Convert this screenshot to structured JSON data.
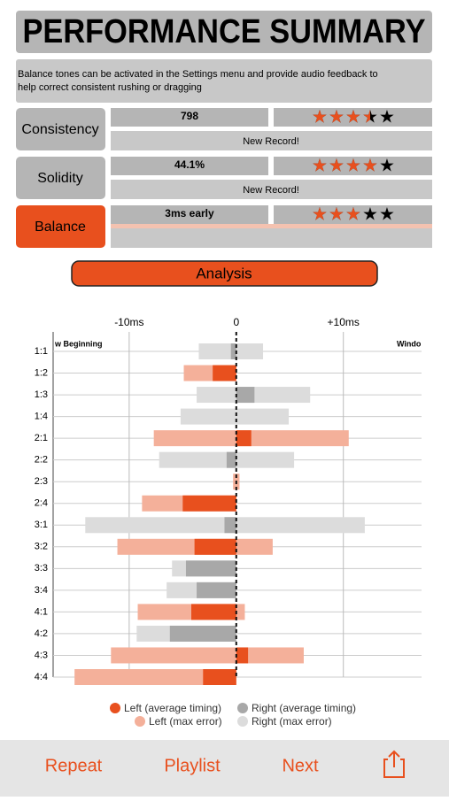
{
  "header": {
    "title": "PERFORMANCE SUMMARY",
    "description_lines": [
      "Balance tones can be activated in the Settings menu and provide audio feedback to",
      "help correct consistent rushing or dragging"
    ]
  },
  "metrics": [
    {
      "label": "Consistency",
      "value": "798",
      "note": "New Record!",
      "stars": 3.5
    },
    {
      "label": "Solidity",
      "value": "44.1%",
      "note": "New Record!",
      "stars": 4
    },
    {
      "label": "Balance",
      "value": "3ms early",
      "stars": 3
    }
  ],
  "button": "Analysis",
  "chart_data": {
    "type": "diverging-bar",
    "annotations": [
      "w Beginning",
      "Windo"
    ],
    "categories": [
      "1:1",
      "1:2",
      "1:3",
      "1:4",
      "2:1",
      "2:2",
      "2:3",
      "2:4",
      "3:1",
      "3:2",
      "3:3",
      "3:4",
      "4:1",
      "4:2",
      "4:3",
      "4:4"
    ],
    "series": [
      {
        "name": "Left (max error)",
        "color": "#f4b09a",
        "values": [
          -3.5,
          -4.9,
          -3.7,
          -5.2,
          -7.7,
          -7.2,
          -0.3,
          -8.8,
          -14.1,
          -11.1,
          -6.0,
          -6.5,
          -9.2,
          -9.3,
          -11.7,
          -15.1
        ],
        "point_colors": [
          "#dcdcdc",
          "#f4b09a",
          "#dcdcdc",
          "#dcdcdc",
          "#f4b09a",
          "#dcdcdc",
          "#f4b09a",
          "#f4b09a",
          "#dcdcdc",
          "#f4b09a",
          "#dcdcdc",
          "#dcdcdc",
          "#f4b09a",
          "#dcdcdc",
          "#f4b09a",
          "#f4b09a"
        ]
      },
      {
        "name": "Right (max error)",
        "color": "#dcdcdc",
        "values": [
          2.5,
          0,
          6.9,
          4.9,
          10.5,
          5.4,
          0.3,
          0,
          12.0,
          3.4,
          0,
          0,
          0.8,
          0,
          6.3,
          0
        ],
        "point_colors": [
          "#dcdcdc",
          "#f4b09a",
          "#dcdcdc",
          "#dcdcdc",
          "#f4b09a",
          "#dcdcdc",
          "#f4b09a",
          "#f4b09a",
          "#dcdcdc",
          "#f4b09a",
          "#dcdcdc",
          "#dcdcdc",
          "#f4b09a",
          "#dcdcdc",
          "#f4b09a",
          "#f4b09a"
        ]
      },
      {
        "name": "Left (average timing)",
        "color": "#e8501e",
        "values": [
          -0.5,
          -2.2,
          0,
          0,
          0,
          -0.9,
          0,
          -5.0,
          -1.1,
          -3.9,
          -4.7,
          -3.7,
          -4.2,
          -6.2,
          0,
          -3.1
        ],
        "point_colors": [
          "#a8a8a8",
          "#e8501e",
          "#a8a8a8",
          "#a8a8a8",
          "#e8501e",
          "#a8a8a8",
          "#e8501e",
          "#e8501e",
          "#a8a8a8",
          "#e8501e",
          "#a8a8a8",
          "#a8a8a8",
          "#e8501e",
          "#a8a8a8",
          "#e8501e",
          "#e8501e"
        ]
      },
      {
        "name": "Right (average timing)",
        "color": "#a8a8a8",
        "values": [
          0,
          0,
          1.7,
          0,
          1.4,
          0,
          0,
          0,
          0,
          0,
          0,
          0,
          0,
          0,
          1.1,
          0
        ],
        "point_colors": [
          "#a8a8a8",
          "#e8501e",
          "#a8a8a8",
          "#a8a8a8",
          "#e8501e",
          "#a8a8a8",
          "#e8501e",
          "#e8501e",
          "#a8a8a8",
          "#e8501e",
          "#a8a8a8",
          "#a8a8a8",
          "#e8501e",
          "#a8a8a8",
          "#e8501e",
          "#e8501e"
        ]
      }
    ],
    "xlim": [
      -17.1,
      17.3
    ],
    "xticks": [
      {
        "value": -10,
        "label": "-10ms"
      },
      0,
      {
        "value": 10,
        "label": "+10ms"
      }
    ],
    "grid": true
  },
  "tabs": [
    "Repeat",
    "Playlist",
    "Next"
  ]
}
